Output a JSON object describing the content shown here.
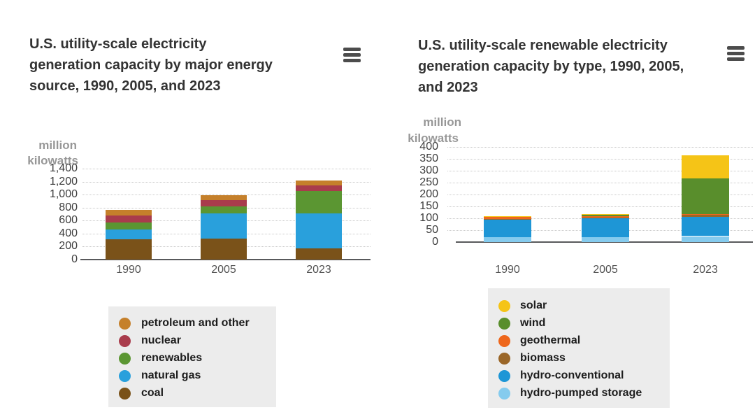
{
  "charts": [
    {
      "id": "electricity-capacity",
      "title": "U.S. utility-scale electricity generation capacity by major energy source, 1990, 2005, and 2023",
      "unit_label": {
        "line1": "million",
        "line2": "kilowatts"
      },
      "menu_icon": "hamburger-menu-icon",
      "chart_data": {
        "type": "bar",
        "stacked": true,
        "categories": [
          "1990",
          "2005",
          "2023"
        ],
        "series": [
          {
            "name": "coal",
            "color": "#7A5219",
            "values": [
              310,
              320,
              170
            ]
          },
          {
            "name": "natural gas",
            "color": "#29A0DC",
            "values": [
              155,
              390,
              545
            ]
          },
          {
            "name": "renewables",
            "color": "#5B9632",
            "values": [
              105,
              105,
              340
            ]
          },
          {
            "name": "nuclear",
            "color": "#A93C4C",
            "values": [
              110,
              105,
              90
            ]
          },
          {
            "name": "petroleum and other",
            "color": "#C5802B",
            "values": [
              80,
              70,
              70
            ]
          }
        ],
        "title": "U.S. utility-scale electricity generation capacity by major energy source, 1990, 2005, and 2023",
        "xlabel": "",
        "ylabel": "million kilowatts",
        "ylim": [
          0,
          1400
        ],
        "yticks": [
          0,
          200,
          400,
          600,
          800,
          1000,
          1200,
          1400
        ],
        "grid": true,
        "legend_position": "bottom"
      },
      "legend": {
        "items": [
          {
            "label": "petroleum and other",
            "color": "#C5802B"
          },
          {
            "label": "nuclear",
            "color": "#A93C4C"
          },
          {
            "label": "renewables",
            "color": "#5B9632"
          },
          {
            "label": "natural gas",
            "color": "#29A0DC"
          },
          {
            "label": "coal",
            "color": "#7A5219"
          }
        ]
      }
    },
    {
      "id": "renewable-capacity",
      "title": "U.S. utility-scale renewable electricity generation capacity by type, 1990, 2005, and 2023",
      "unit_label": {
        "line1": "million",
        "line2": "kilowatts"
      },
      "menu_icon": "hamburger-menu-icon",
      "chart_data": {
        "type": "bar",
        "stacked": true,
        "categories": [
          "1990",
          "2005",
          "2023"
        ],
        "series": [
          {
            "name": "hydro-pumped storage",
            "color": "#85CBEE",
            "values": [
              20,
              20,
              25
            ]
          },
          {
            "name": "hydro-conventional",
            "color": "#1E96D6",
            "values": [
              75,
              80,
              80
            ]
          },
          {
            "name": "biomass",
            "color": "#9A6628",
            "values": [
              3,
              3,
              10
            ]
          },
          {
            "name": "geothermal",
            "color": "#EE671C",
            "values": [
              8,
              5,
              4
            ]
          },
          {
            "name": "wind",
            "color": "#598E2C",
            "values": [
              2,
              10,
              150
            ]
          },
          {
            "name": "solar",
            "color": "#F5C417",
            "values": [
              1,
              1,
              95
            ]
          }
        ],
        "title": "U.S. utility-scale renewable electricity generation capacity by type, 1990, 2005, and 2023",
        "xlabel": "",
        "ylabel": "million kilowatts",
        "ylim": [
          0,
          400
        ],
        "yticks": [
          0,
          50,
          100,
          150,
          200,
          250,
          300,
          350,
          400
        ],
        "grid": true,
        "legend_position": "bottom"
      },
      "legend": {
        "items": [
          {
            "label": "solar",
            "color": "#F5C417"
          },
          {
            "label": "wind",
            "color": "#598E2C"
          },
          {
            "label": "geothermal",
            "color": "#EE671C"
          },
          {
            "label": "biomass",
            "color": "#9A6628"
          },
          {
            "label": "hydro-conventional",
            "color": "#1E96D6"
          },
          {
            "label": "hydro-pumped storage",
            "color": "#85CBEE"
          }
        ]
      }
    }
  ]
}
